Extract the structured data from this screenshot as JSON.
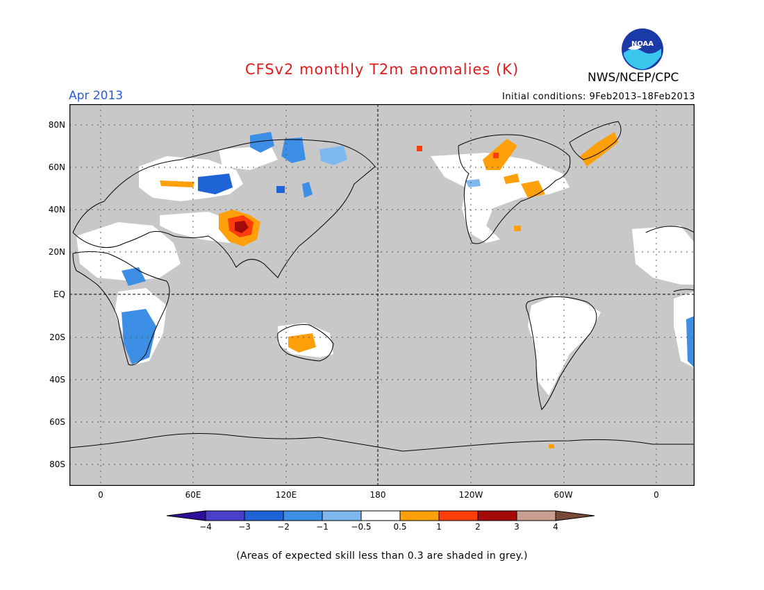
{
  "header": {
    "title": "CFSv2 monthly T2m anomalies (K)",
    "org": "NWS/NCEP/CPC",
    "logo_text": "NOAA",
    "month": "Apr 2013",
    "initial_conditions": "Initial conditions: 9Feb2013–18Feb2013"
  },
  "map": {
    "lat_labels": [
      "80N",
      "60N",
      "40N",
      "20N",
      "EQ",
      "20S",
      "40S",
      "60S",
      "80S"
    ],
    "lon_labels": [
      "0",
      "60E",
      "120E",
      "180",
      "120W",
      "60W",
      "0"
    ],
    "background_color": "#c8c8c8"
  },
  "colorbar": {
    "labels": [
      "−4",
      "−3",
      "−2",
      "−1",
      "−0.5",
      "0.5",
      "1",
      "2",
      "3",
      "4"
    ],
    "colors": [
      "#2e0f99",
      "#4a3fc9",
      "#1e64d6",
      "#3d8fe6",
      "#7fb8ef",
      "#ffffff",
      "#ff9f0a",
      "#ff3d0a",
      "#a30a0a",
      "#c8a090",
      "#7a4a38"
    ]
  },
  "footer": {
    "note": "(Areas of expected skill less than 0.3 are shaded in grey.)"
  }
}
